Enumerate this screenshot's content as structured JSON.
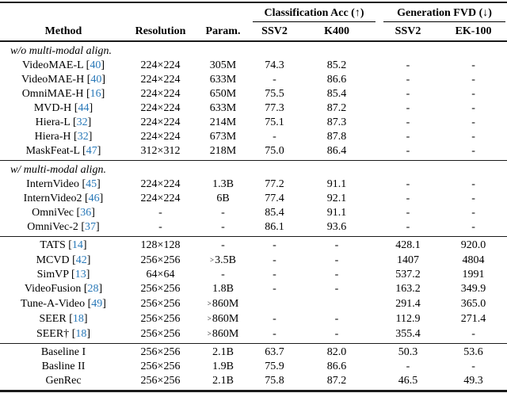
{
  "colors": {
    "citation_blue": "#2878b8",
    "rule_color": "#1a1a1a",
    "background": "#ffffff",
    "text": "#000000"
  },
  "table": {
    "group_headers": [
      "Classification Acc (↑)",
      "Generation FVD (↓)"
    ],
    "columns": [
      "Method",
      "Resolution",
      "Param.",
      "SSV2",
      "K400",
      "SSV2",
      "EK-100"
    ],
    "cell_names": [
      "resolution-cell",
      "param-cell",
      "cls-ssv2-cell",
      "cls-k400-cell",
      "fvd-ssv2-cell",
      "fvd-ek100-cell"
    ],
    "sections": [
      {
        "header": "w/o multi-modal align.",
        "rows": [
          {
            "method": "VideoMAE-L",
            "cite": "40",
            "cells": [
              "224×224",
              "305M",
              "74.3",
              "85.2",
              "-",
              "-"
            ]
          },
          {
            "method": "VideoMAE-H",
            "cite": "40",
            "cells": [
              "224×224",
              "633M",
              "-",
              "86.6",
              "-",
              "-"
            ]
          },
          {
            "method": "OmniMAE-H",
            "cite": "16",
            "cells": [
              "224×224",
              "650M",
              "75.5",
              "85.4",
              "-",
              "-"
            ]
          },
          {
            "method": "MVD-H",
            "cite": "44",
            "cells": [
              "224×224",
              "633M",
              "77.3",
              "87.2",
              "-",
              "-"
            ]
          },
          {
            "method": "Hiera-L",
            "cite": "32",
            "cells": [
              "224×224",
              "214M",
              "75.1",
              "87.3",
              "-",
              "-"
            ]
          },
          {
            "method": "Hiera-H",
            "cite": "32",
            "cells": [
              "224×224",
              "673M",
              "-",
              "87.8",
              "-",
              "-"
            ]
          },
          {
            "method": "MaskFeat-L",
            "cite": "47",
            "cells": [
              "312×312",
              "218M",
              "75.0",
              "86.4",
              "-",
              "-"
            ]
          }
        ]
      },
      {
        "header": "w/ multi-modal align.",
        "rows": [
          {
            "method": "InternVideo",
            "cite": "45",
            "cells": [
              "224×224",
              "1.3B",
              "77.2",
              "91.1",
              "-",
              "-"
            ]
          },
          {
            "method": "InternVideo2",
            "cite": "46",
            "cells": [
              "224×224",
              "6B",
              "77.4",
              "92.1",
              "-",
              "-"
            ]
          },
          {
            "method": "OmniVec",
            "cite": "36",
            "cells": [
              "-",
              "-",
              "85.4",
              "91.1",
              "-",
              "-"
            ]
          },
          {
            "method": "OmniVec-2",
            "cite": "37",
            "cells": [
              "-",
              "-",
              "86.1",
              "93.6",
              "-",
              "-"
            ]
          }
        ]
      },
      {
        "header": null,
        "rows": [
          {
            "method": "TATS",
            "cite": "14",
            "cells": [
              "128×128",
              "-",
              "-",
              "-",
              "428.1",
              "920.0"
            ]
          },
          {
            "method": "MCVD",
            "cite": "42",
            "cells": [
              "256×256",
              ">3.5B",
              "-",
              "-",
              "1407",
              "4804"
            ]
          },
          {
            "method": "SimVP",
            "cite": "13",
            "cells": [
              "64×64",
              "-",
              "-",
              "-",
              "537.2",
              "1991"
            ]
          },
          {
            "method": "VideoFusion",
            "cite": "28",
            "cells": [
              "256×256",
              "1.8B",
              "-",
              "-",
              "163.2",
              "349.9"
            ]
          },
          {
            "method": "Tune-A-Video",
            "cite": "49",
            "cells": [
              "256×256",
              ">860M",
              "",
              "",
              "291.4",
              "365.0"
            ]
          },
          {
            "method": "SEER",
            "cite": "18",
            "cells": [
              "256×256",
              ">860M",
              "-",
              "-",
              "112.9",
              "271.4"
            ]
          },
          {
            "method": "SEER†",
            "cite": "18",
            "cells": [
              "256×256",
              ">860M",
              "-",
              "-",
              "355.4",
              "-"
            ]
          }
        ]
      },
      {
        "header": null,
        "rows": [
          {
            "method": "Baseline I",
            "cite": null,
            "cells": [
              "256×256",
              "2.1B",
              "63.7",
              "82.0",
              "50.3",
              "53.6"
            ]
          },
          {
            "method": "Basline II",
            "cite": null,
            "cells": [
              "256×256",
              "1.9B",
              "75.9",
              "86.6",
              "-",
              "-"
            ]
          },
          {
            "method": "GenRec",
            "cite": null,
            "cells": [
              "256×256",
              "2.1B",
              "75.8",
              "87.2",
              "46.5",
              "49.3"
            ]
          }
        ]
      }
    ]
  }
}
